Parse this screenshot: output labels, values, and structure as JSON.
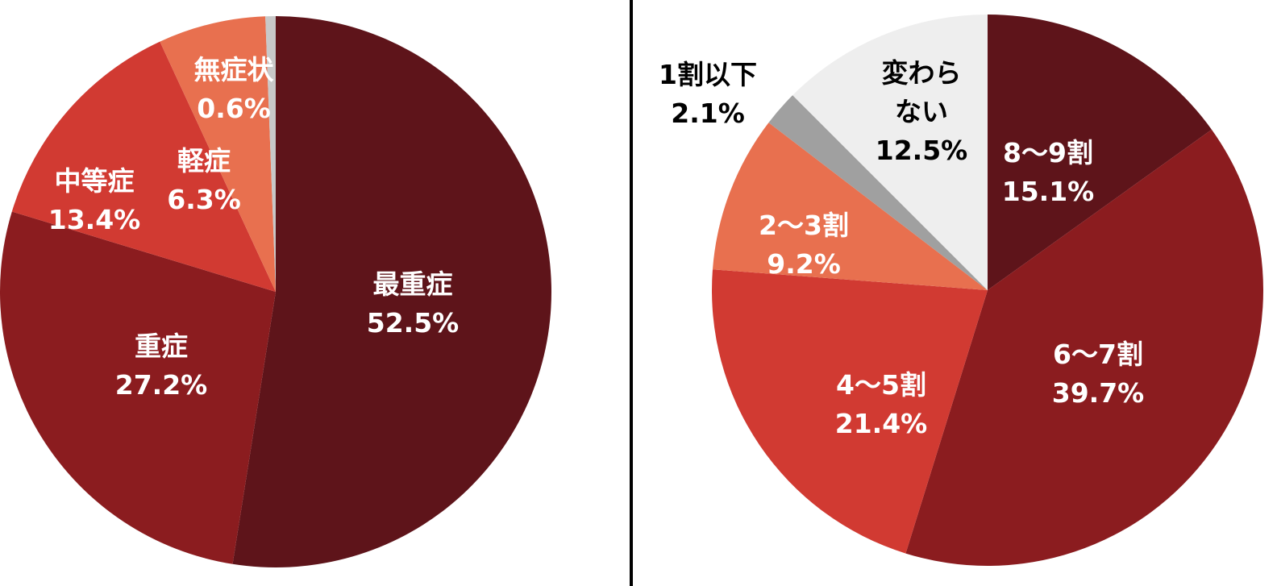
{
  "chart_data": [
    {
      "type": "pie",
      "categories": [
        "最重症",
        "重症",
        "中等症",
        "軽症",
        "無症状"
      ],
      "values": [
        52.5,
        27.2,
        13.4,
        6.3,
        0.6
      ],
      "value_labels": [
        "52.5%",
        "27.2%",
        "13.4%",
        "6.3%",
        "0.6%"
      ],
      "colors": [
        "#5e141a",
        "#8b1c1f",
        "#d13a32",
        "#e8704f",
        "#c8c8c8"
      ]
    },
    {
      "type": "pie",
      "categories": [
        "8〜9割",
        "6〜7割",
        "4〜5割",
        "2〜3割",
        "1割以下",
        "変わら\nない"
      ],
      "values": [
        15.1,
        39.7,
        21.4,
        9.2,
        2.1,
        12.5
      ],
      "value_labels": [
        "15.1%",
        "39.7%",
        "21.4%",
        "9.2%",
        "2.1%",
        "12.5%"
      ],
      "colors": [
        "#5e141a",
        "#8b1c1f",
        "#d13a32",
        "#e8704f",
        "#a0a0a0",
        "#eeeeee"
      ]
    }
  ]
}
